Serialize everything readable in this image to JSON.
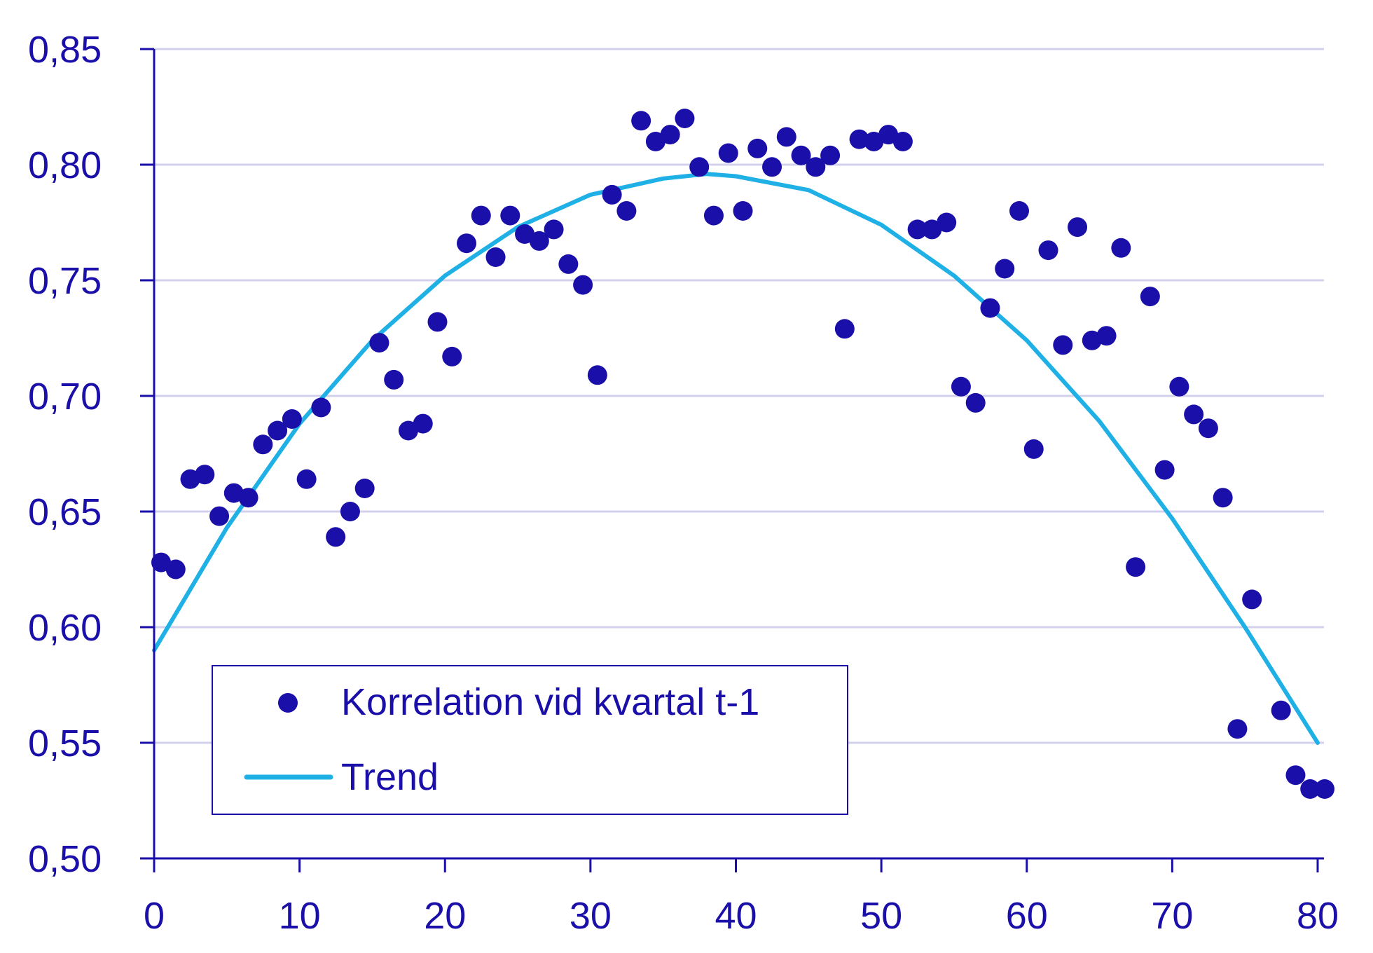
{
  "chart_data": {
    "type": "scatter",
    "title": "",
    "xlabel": "",
    "ylabel": "",
    "xlim": [
      0,
      80
    ],
    "ylim": [
      0.5,
      0.85
    ],
    "x_ticks": [
      0,
      10,
      20,
      30,
      40,
      50,
      60,
      70,
      80
    ],
    "x_tick_labels": [
      "0",
      "10",
      "20",
      "30",
      "40",
      "50",
      "60",
      "70",
      "80"
    ],
    "y_ticks": [
      0.5,
      0.55,
      0.6,
      0.65,
      0.7,
      0.75,
      0.8,
      0.85
    ],
    "y_tick_labels": [
      "0,50",
      "0,55",
      "0,60",
      "0,65",
      "0,70",
      "0,75",
      "0,80",
      "0,85"
    ],
    "grid": "horizontal",
    "legend_position": "bottom-left",
    "colors": {
      "axis": "#1a0fa8",
      "points": "#1a0fa8",
      "trend": "#1fb0e6",
      "grid": "#d3d0ec",
      "tick_text": "#1a0fa8"
    },
    "series": [
      {
        "name": "Korrelation vid kvartal t-1",
        "kind": "scatter",
        "x": [
          0,
          1,
          2,
          3,
          4,
          5,
          6,
          7,
          8,
          9,
          10,
          11,
          12,
          13,
          14,
          15,
          16,
          17,
          18,
          19,
          20,
          21,
          22,
          23,
          24,
          25,
          26,
          27,
          28,
          29,
          30,
          31,
          32,
          33,
          34,
          35,
          36,
          37,
          38,
          39,
          40,
          41,
          42,
          43,
          44,
          45,
          46,
          47,
          48,
          49,
          50,
          51,
          52,
          53,
          54,
          55,
          56,
          57,
          58,
          59,
          60,
          61,
          62,
          63,
          64,
          65,
          66,
          67,
          68,
          69,
          70,
          71,
          72,
          73,
          74,
          75,
          77,
          78,
          79,
          80
        ],
        "y": [
          0.628,
          0.625,
          0.664,
          0.666,
          0.648,
          0.658,
          0.656,
          0.679,
          0.685,
          0.69,
          0.664,
          0.695,
          0.639,
          0.65,
          0.66,
          0.723,
          0.707,
          0.685,
          0.688,
          0.732,
          0.717,
          0.766,
          0.778,
          0.76,
          0.778,
          0.77,
          0.767,
          0.772,
          0.757,
          0.748,
          0.709,
          0.787,
          0.78,
          0.819,
          0.81,
          0.813,
          0.82,
          0.799,
          0.778,
          0.805,
          0.78,
          0.807,
          0.799,
          0.812,
          0.804,
          0.799,
          0.804,
          0.729,
          0.811,
          0.81,
          0.813,
          0.81,
          0.772,
          0.772,
          0.775,
          0.704,
          0.697,
          0.738,
          0.755,
          0.78,
          0.677,
          0.763,
          0.722,
          0.773,
          0.724,
          0.726,
          0.764,
          0.626,
          0.743,
          0.668,
          0.704,
          0.692,
          0.686,
          0.656,
          0.556,
          0.612,
          0.564,
          0.536,
          0.53,
          0.53
        ]
      },
      {
        "name": "Trend",
        "kind": "line",
        "x": [
          0,
          5,
          10,
          15,
          20,
          25,
          30,
          35,
          38,
          40,
          45,
          50,
          55,
          60,
          65,
          70,
          75,
          80
        ],
        "y": [
          0.59,
          0.643,
          0.688,
          0.724,
          0.752,
          0.773,
          0.787,
          0.794,
          0.796,
          0.795,
          0.789,
          0.774,
          0.752,
          0.724,
          0.689,
          0.647,
          0.6,
          0.55
        ]
      }
    ]
  }
}
